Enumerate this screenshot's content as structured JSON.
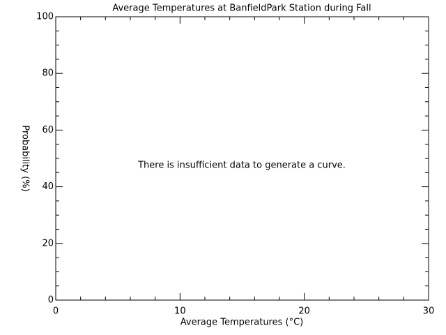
{
  "chart_data": {
    "type": "line",
    "title": "Average Temperatures at BanfieldPark Station during Fall",
    "x_label": "Average Temperatures (°C)",
    "y_label": "Probability (%)",
    "annotation": "There is insufficient data to generate a curve.",
    "series": [],
    "xlim": [
      0,
      30
    ],
    "xticks": [
      0,
      10,
      20,
      30
    ],
    "xminorticks": [
      2,
      4,
      6,
      8,
      12,
      14,
      16,
      18,
      22,
      24,
      26,
      28
    ],
    "ylim": [
      0,
      100
    ],
    "yticks": [
      0,
      20,
      40,
      60,
      80,
      100
    ],
    "yminorticks": [
      5,
      10,
      15,
      25,
      30,
      35,
      45,
      50,
      55,
      65,
      70,
      75,
      85,
      90,
      95
    ],
    "color": "#000000"
  }
}
